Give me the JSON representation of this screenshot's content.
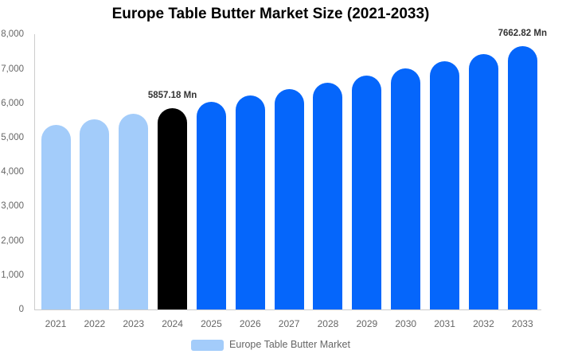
{
  "title": "Europe Table Butter Market Size (2021-2033)",
  "legend": {
    "label": "Europe Table Butter Market",
    "swatch_color": "#A3CCFA"
  },
  "colors": {
    "historical_bar": "#A3CCFA",
    "base_year_bar": "#000000",
    "forecast_bar": "#0566FB",
    "axis_line": "#cccccc",
    "axis_text": "#666666",
    "data_label_text": "#333333",
    "title_text": "#000000"
  },
  "chart_data": {
    "type": "bar",
    "title": "Europe Table Butter Market Size (2021-2033)",
    "categories": [
      "2021",
      "2022",
      "2023",
      "2024",
      "2025",
      "2026",
      "2027",
      "2028",
      "2029",
      "2030",
      "2031",
      "2032",
      "2033"
    ],
    "values": [
      5360,
      5520,
      5685,
      5857.18,
      6035,
      6218,
      6406,
      6600,
      6800,
      7006,
      7218,
      7436,
      7662.82
    ],
    "bar_colors": [
      "#A3CCFA",
      "#A3CCFA",
      "#A3CCFA",
      "#000000",
      "#0566FB",
      "#0566FB",
      "#0566FB",
      "#0566FB",
      "#0566FB",
      "#0566FB",
      "#0566FB",
      "#0566FB",
      "#0566FB"
    ],
    "unit": "Mn",
    "y_ticks": [
      "0",
      "1,000",
      "2,000",
      "3,000",
      "4,000",
      "5,000",
      "6,000",
      "7,000",
      "8,000"
    ],
    "ylim": [
      0,
      8000
    ],
    "grid": false,
    "legend_position": "bottom",
    "legend_entries": [
      "Europe Table Butter Market"
    ],
    "data_labels": [
      {
        "category": "2024",
        "text": "5857.18 Mn"
      },
      {
        "category": "2033",
        "text": "7662.82 Mn"
      }
    ]
  }
}
